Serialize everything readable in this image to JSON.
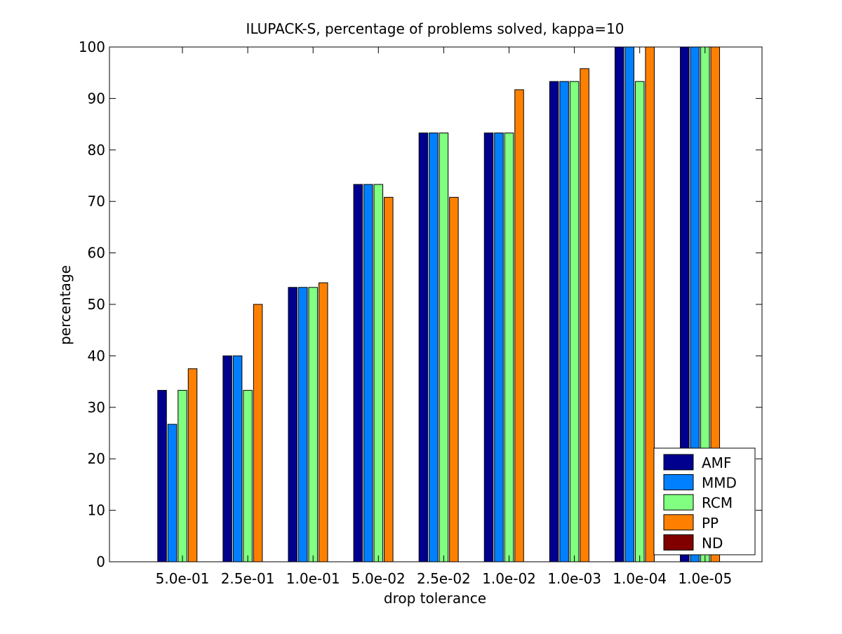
{
  "chart_data": {
    "type": "bar",
    "title": "ILUPACK-S, percentage of problems solved, kappa=10",
    "xlabel": "drop tolerance",
    "ylabel": "percentage",
    "ylim": [
      0,
      100
    ],
    "yticks": [
      0,
      10,
      20,
      30,
      40,
      50,
      60,
      70,
      80,
      90,
      100
    ],
    "categories": [
      "5.0e-01",
      "2.5e-01",
      "1.0e-01",
      "5.0e-02",
      "2.5e-02",
      "1.0e-02",
      "1.0e-03",
      "1.0e-04",
      "1.0e-05"
    ],
    "series": [
      {
        "name": "AMF",
        "color": "#00008f",
        "values": [
          33.3,
          40.0,
          53.3,
          73.3,
          83.3,
          83.3,
          93.3,
          100,
          100
        ]
      },
      {
        "name": "MMD",
        "color": "#0080ff",
        "values": [
          26.7,
          40.0,
          53.3,
          73.3,
          83.3,
          83.3,
          93.3,
          100,
          100
        ]
      },
      {
        "name": "RCM",
        "color": "#80ff80",
        "values": [
          33.3,
          33.3,
          53.3,
          73.3,
          83.3,
          83.3,
          93.3,
          93.3,
          100
        ]
      },
      {
        "name": "PP",
        "color": "#ff8000",
        "values": [
          37.5,
          50.0,
          54.2,
          70.8,
          70.8,
          91.7,
          95.8,
          100,
          100
        ]
      },
      {
        "name": "ND",
        "color": "#800000",
        "values": [
          0,
          0,
          0,
          0,
          0,
          0,
          0,
          0,
          0
        ]
      }
    ],
    "legend_position": "bottom-right",
    "grid": false
  }
}
